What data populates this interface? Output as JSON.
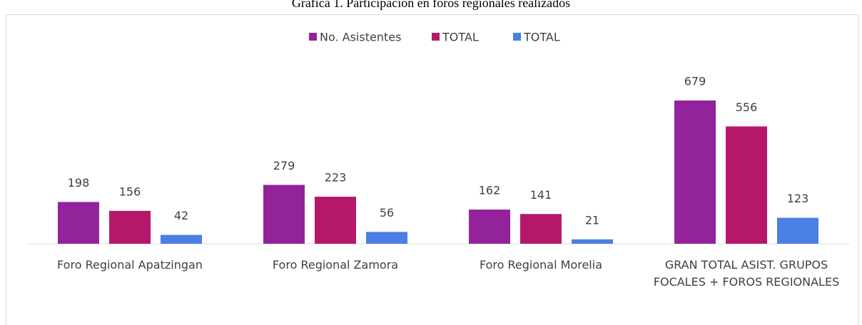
{
  "chart_data": {
    "type": "bar",
    "title": "Gráfica 1. Participación en foros regionales realizados",
    "categories": [
      "Foro Regional Apatzingan",
      "Foro Regional Zamora",
      "Foro Regional Morelia",
      "GRAN TOTAL ASIST. GRUPOS FOCALES + FOROS REGIONALES"
    ],
    "series": [
      {
        "name": "No. Asistentes",
        "color": "#92239b",
        "values": [
          198,
          279,
          162,
          679
        ]
      },
      {
        "name": "TOTAL",
        "color": "#b5186b",
        "values": [
          156,
          223,
          141,
          556
        ]
      },
      {
        "name": "TOTAL",
        "color": "#4a7fe5",
        "values": [
          42,
          56,
          21,
          123
        ]
      }
    ],
    "legend": "top"
  }
}
